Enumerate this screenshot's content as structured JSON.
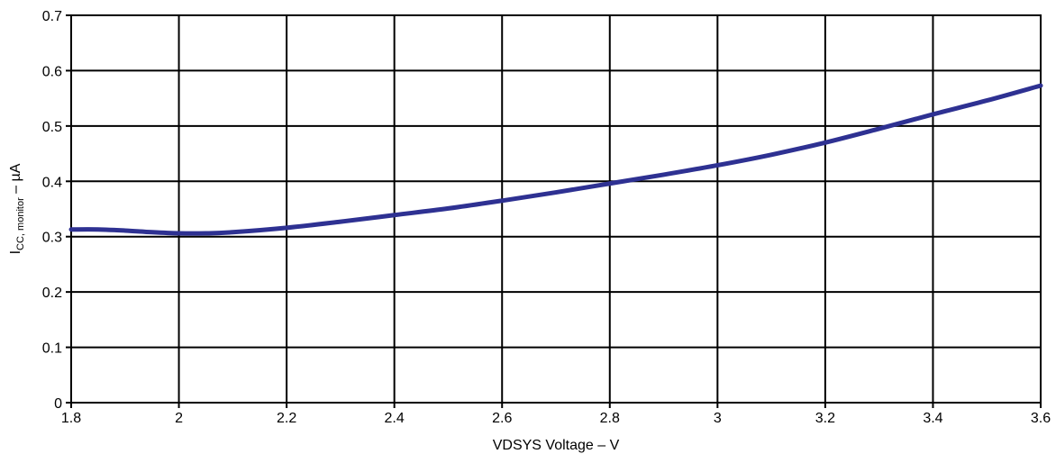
{
  "chart_data": {
    "type": "line",
    "xlabel": "VDSYS Voltage – V",
    "ylabel": {
      "main": "I",
      "subscript": "CC, monitor",
      "suffix": " – µA"
    },
    "xlim": [
      1.8,
      3.6
    ],
    "ylim": [
      0,
      0.7
    ],
    "x_ticks": [
      "1.8",
      "2",
      "2.2",
      "2.4",
      "2.6",
      "2.8",
      "3",
      "3.2",
      "3.4",
      "3.6"
    ],
    "y_ticks": [
      "0",
      "0.1",
      "0.2",
      "0.3",
      "0.4",
      "0.5",
      "0.6",
      "0.7"
    ],
    "grid": true,
    "series": [
      {
        "color": "#2e3192",
        "x": [
          1.8,
          1.85,
          1.9,
          1.95,
          2.0,
          2.05,
          2.1,
          2.2,
          2.3,
          2.4,
          2.5,
          2.6,
          2.7,
          2.8,
          2.9,
          3.0,
          3.1,
          3.2,
          3.3,
          3.4,
          3.5,
          3.6
        ],
        "y": [
          0.313,
          0.313,
          0.311,
          0.308,
          0.306,
          0.306,
          0.308,
          0.316,
          0.327,
          0.339,
          0.351,
          0.365,
          0.38,
          0.396,
          0.412,
          0.429,
          0.448,
          0.47,
          0.495,
          0.521,
          0.546,
          0.573
        ]
      }
    ]
  }
}
